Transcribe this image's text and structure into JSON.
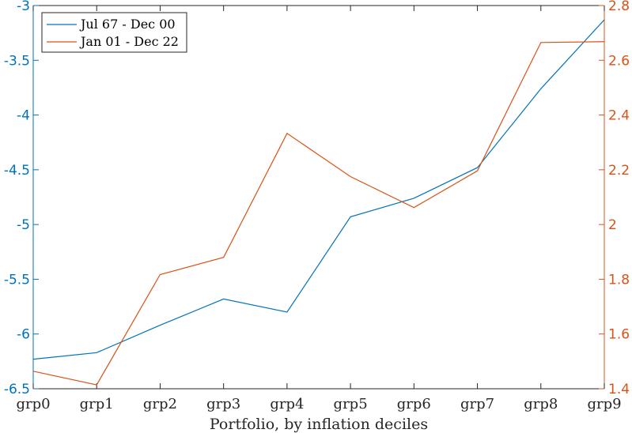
{
  "chart_data": {
    "type": "line",
    "categories": [
      "grp0",
      "grp1",
      "grp2",
      "grp3",
      "grp4",
      "grp5",
      "grp6",
      "grp7",
      "grp8",
      "grp9"
    ],
    "xlabel": "Portfolio, by inflation deciles",
    "series": [
      {
        "name": "Jul 67 - Dec 00",
        "axis": "left",
        "color": "#0072bd",
        "values": [
          -6.23,
          -6.17,
          -5.92,
          -5.68,
          -5.8,
          -4.93,
          -4.76,
          -4.48,
          -3.76,
          -3.13
        ]
      },
      {
        "name": "Jan 01 - Dec 22",
        "axis": "right",
        "color": "#d95319",
        "values": [
          1.464,
          1.414,
          1.817,
          1.88,
          2.333,
          2.175,
          2.062,
          2.196,
          2.665,
          2.668
        ]
      }
    ],
    "y_left": {
      "ylim": [
        -6.5,
        -3
      ],
      "ticks": [
        "-6.5",
        "-6",
        "-5.5",
        "-5",
        "-4.5",
        "-4",
        "-3.5",
        "-3"
      ],
      "color": "#0072bd"
    },
    "y_right": {
      "ylim": [
        1.4,
        2.8
      ],
      "ticks": [
        "1.4",
        "1.6",
        "1.8",
        "2",
        "2.2",
        "2.4",
        "2.6",
        "2.8"
      ],
      "color": "#d95319"
    },
    "grid": false,
    "legend": "top-left"
  }
}
